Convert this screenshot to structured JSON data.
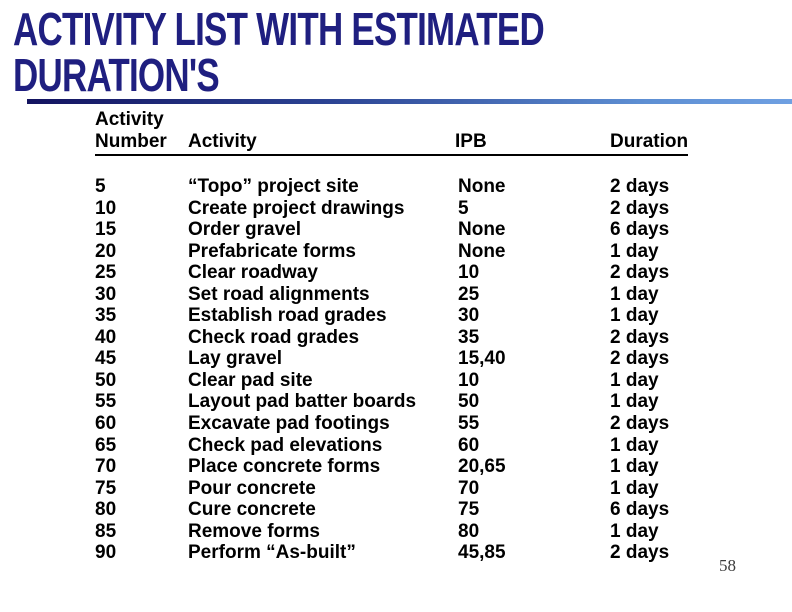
{
  "slide": {
    "title_line1": "ACTIVITY LIST WITH ESTIMATED",
    "title_line2": "DURATION'S",
    "page_number": "58",
    "title_color": "#1f1f80",
    "rule_gradient_start": "#131360",
    "rule_gradient_end": "#6fa0e2",
    "text_color": "#000000"
  },
  "table": {
    "header": {
      "col1_line1": "Activity",
      "col1_line2": "Number",
      "col2": "Activity",
      "col3": "IPB",
      "col4": "Duration"
    },
    "rows": [
      {
        "number": "5",
        "activity": "“Topo” project site",
        "ipb": "None",
        "duration": "2 days"
      },
      {
        "number": "10",
        "activity": "Create project drawings",
        "ipb": "5",
        "duration": "2 days"
      },
      {
        "number": "15",
        "activity": "Order gravel",
        "ipb": "None",
        "duration": "6 days"
      },
      {
        "number": "20",
        "activity": "Prefabricate forms",
        "ipb": "None",
        "duration": "1 day"
      },
      {
        "number": "25",
        "activity": "Clear roadway",
        "ipb": "10",
        "duration": "2 days"
      },
      {
        "number": "30",
        "activity": "Set road alignments",
        "ipb": "25",
        "duration": "1 day"
      },
      {
        "number": "35",
        "activity": "Establish road grades",
        "ipb": "30",
        "duration": "1 day"
      },
      {
        "number": "40",
        "activity": "Check road grades",
        "ipb": "35",
        "duration": "2 days"
      },
      {
        "number": "45",
        "activity": "Lay gravel",
        "ipb": "15,40",
        "duration": "2 days"
      },
      {
        "number": "50",
        "activity": "Clear pad site",
        "ipb": "10",
        "duration": "1 day"
      },
      {
        "number": "55",
        "activity": "Layout pad batter boards",
        "ipb": "50",
        "duration": "1 day"
      },
      {
        "number": "60",
        "activity": "Excavate pad footings",
        "ipb": "55",
        "duration": "2 days"
      },
      {
        "number": "65",
        "activity": "Check pad elevations",
        "ipb": "60",
        "duration": "1 day"
      },
      {
        "number": "70",
        "activity": "Place concrete forms",
        "ipb": "20,65",
        "duration": "1 day"
      },
      {
        "number": "75",
        "activity": "Pour concrete",
        "ipb": "70",
        "duration": "1 day"
      },
      {
        "number": "80",
        "activity": "Cure concrete",
        "ipb": "75",
        "duration": "6 days"
      },
      {
        "number": "85",
        "activity": "Remove forms",
        "ipb": "80",
        "duration": "1 day"
      },
      {
        "number": "90",
        "activity": "Perform “As-built”",
        "ipb": "45,85",
        "duration": "2 days"
      }
    ]
  }
}
